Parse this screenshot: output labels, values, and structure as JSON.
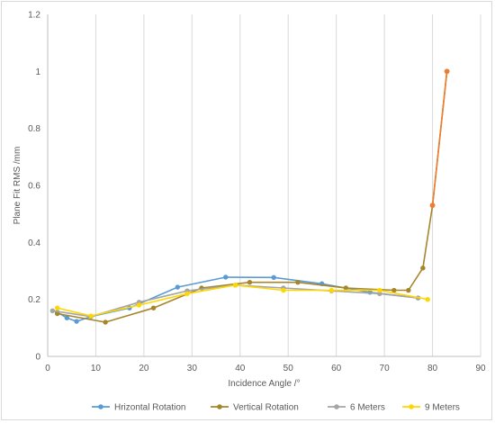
{
  "chart_data": {
    "type": "line",
    "title": "",
    "xlabel": "Incidence Angle /°",
    "ylabel": "Plane Fit RMS /mm",
    "xlim": [
      0,
      90
    ],
    "ylim": [
      0,
      1.2
    ],
    "xticks": [
      "0",
      "10",
      "20",
      "30",
      "40",
      "50",
      "60",
      "70",
      "80",
      "90"
    ],
    "yticks": [
      "0",
      "0.2",
      "0.4",
      "0.6",
      "0.8",
      "1",
      "1.2"
    ],
    "grid": "vertical",
    "legend_position": "bottom",
    "series": [
      {
        "name": "Hrizontal Rotation",
        "color": "#5b9bd5",
        "points": [
          [
            2,
            0.155
          ],
          [
            4,
            0.135
          ],
          [
            6,
            0.123
          ],
          [
            9,
            0.14
          ],
          [
            17,
            0.17
          ],
          [
            27,
            0.243
          ],
          [
            37,
            0.278
          ],
          [
            47,
            0.277
          ],
          [
            57,
            0.255
          ],
          [
            67,
            0.225
          ],
          [
            77,
            0.205
          ]
        ]
      },
      {
        "name": "Vertical Rotation",
        "color": "#a5862a",
        "points": [
          [
            2,
            0.15
          ],
          [
            12,
            0.12
          ],
          [
            22,
            0.17
          ],
          [
            32,
            0.24
          ],
          [
            42,
            0.26
          ],
          [
            52,
            0.26
          ],
          [
            62,
            0.24
          ],
          [
            72,
            0.232
          ],
          [
            75,
            0.232
          ],
          [
            78,
            0.31
          ],
          [
            80,
            0.53
          ],
          [
            83,
            1.0
          ]
        ]
      },
      {
        "name": "6 Meters",
        "color": "#a5a5a5",
        "points": [
          [
            1,
            0.16
          ],
          [
            9,
            0.14
          ],
          [
            19,
            0.19
          ],
          [
            29,
            0.23
          ],
          [
            39,
            0.25
          ],
          [
            49,
            0.24
          ],
          [
            59,
            0.23
          ],
          [
            69,
            0.22
          ],
          [
            77,
            0.205
          ]
        ]
      },
      {
        "name": "9 Meters",
        "color": "#ffd700",
        "points": [
          [
            2,
            0.17
          ],
          [
            9,
            0.142
          ],
          [
            19,
            0.18
          ],
          [
            29,
            0.22
          ],
          [
            39,
            0.25
          ],
          [
            49,
            0.232
          ],
          [
            59,
            0.232
          ],
          [
            69,
            0.232
          ],
          [
            79,
            0.2
          ]
        ]
      }
    ],
    "highlight_points": [
      {
        "series": "Vertical Rotation",
        "color": "#ed7d31",
        "points": [
          [
            80,
            0.53
          ],
          [
            83,
            1.0
          ]
        ]
      }
    ]
  }
}
